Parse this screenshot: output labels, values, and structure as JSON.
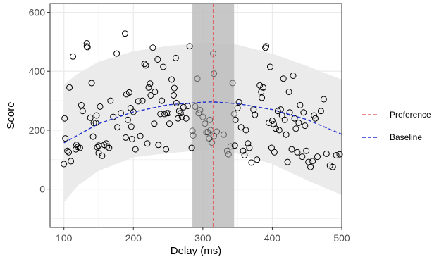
{
  "chart_data": {
    "type": "scatter",
    "xlabel": "Delay (ms)",
    "ylabel": "Score",
    "xlim": [
      80,
      500
    ],
    "ylim": [
      -130,
      630
    ],
    "x_ticks": [
      100,
      200,
      300,
      400,
      500
    ],
    "y_ticks": [
      0,
      200,
      400,
      600
    ],
    "grid": true,
    "legend_position": "right",
    "colors": {
      "panel_background": "#ffffff",
      "grid": "#ebebeb",
      "band": "#ebebeb",
      "window": "#bdbdbd",
      "points_stroke": "#000000",
      "preference": "#e06666",
      "baseline": "#1f2fcc"
    },
    "window": {
      "x_min": 285,
      "x_max": 345
    },
    "preference": {
      "name": "Preference",
      "x": 315
    },
    "baseline": {
      "name": "Baseline",
      "x": [
        100,
        150,
        200,
        250,
        300,
        315,
        350,
        400,
        450,
        500
      ],
      "y": [
        157,
        222,
        262,
        286,
        295,
        296,
        290,
        270,
        236,
        186
      ]
    },
    "band": {
      "x": [
        100,
        120,
        150,
        200,
        250,
        300,
        315,
        350,
        400,
        450,
        500
      ],
      "upper": [
        355,
        392,
        432,
        468,
        486,
        496,
        497,
        490,
        460,
        418,
        372
      ],
      "lower": [
        -45,
        12,
        62,
        108,
        122,
        132,
        134,
        120,
        85,
        30,
        -20
      ]
    },
    "points": [
      [
        100,
        85
      ],
      [
        101,
        240
      ],
      [
        102,
        172
      ],
      [
        105,
        130
      ],
      [
        107,
        125
      ],
      [
        108,
        345
      ],
      [
        110,
        95
      ],
      [
        113,
        450
      ],
      [
        117,
        135
      ],
      [
        118,
        150
      ],
      [
        120,
        143
      ],
      [
        123,
        140
      ],
      [
        125,
        285
      ],
      [
        127,
        265
      ],
      [
        133,
        485
      ],
      [
        133,
        495
      ],
      [
        134,
        482
      ],
      [
        138,
        242
      ],
      [
        140,
        360
      ],
      [
        142,
        178
      ],
      [
        143,
        225
      ],
      [
        146,
        225
      ],
      [
        147,
        250
      ],
      [
        148,
        142
      ],
      [
        150,
        122
      ],
      [
        150,
        148
      ],
      [
        152,
        280
      ],
      [
        155,
        113
      ],
      [
        158,
        150
      ],
      [
        161,
        155
      ],
      [
        162,
        145
      ],
      [
        165,
        140
      ],
      [
        167,
        300
      ],
      [
        171,
        245
      ],
      [
        176,
        460
      ],
      [
        177,
        210
      ],
      [
        182,
        258
      ],
      [
        188,
        528
      ],
      [
        189,
        175
      ],
      [
        190,
        322
      ],
      [
        192,
        235
      ],
      [
        194,
        328
      ],
      [
        196,
        275
      ],
      [
        197,
        212
      ],
      [
        198,
        170
      ],
      [
        200,
        262
      ],
      [
        203,
        135
      ],
      [
        207,
        298
      ],
      [
        210,
        180
      ],
      [
        213,
        300
      ],
      [
        216,
        425
      ],
      [
        218,
        420
      ],
      [
        220,
        155
      ],
      [
        222,
        345
      ],
      [
        224,
        358
      ],
      [
        225,
        318
      ],
      [
        228,
        480
      ],
      [
        230,
        222
      ],
      [
        231,
        330
      ],
      [
        235,
        440
      ],
      [
        236,
        150
      ],
      [
        239,
        255
      ],
      [
        241,
        300
      ],
      [
        243,
        415
      ],
      [
        245,
        255
      ],
      [
        247,
        135
      ],
      [
        248,
        258
      ],
      [
        250,
        258
      ],
      [
        252,
        222
      ],
      [
        255,
        372
      ],
      [
        258,
        318
      ],
      [
        259,
        343
      ],
      [
        261,
        445
      ],
      [
        262,
        292
      ],
      [
        264,
        240
      ],
      [
        266,
        265
      ],
      [
        268,
        258
      ],
      [
        270,
        245
      ],
      [
        272,
        278
      ],
      [
        276,
        240
      ],
      [
        278,
        282
      ],
      [
        281,
        485
      ],
      [
        284,
        140
      ],
      [
        285,
        198
      ],
      [
        286,
        182
      ],
      [
        289,
        280
      ],
      [
        292,
        375
      ],
      [
        294,
        258
      ],
      [
        296,
        268
      ],
      [
        300,
        245
      ],
      [
        303,
        222
      ],
      [
        305,
        193
      ],
      [
        307,
        193
      ],
      [
        309,
        172
      ],
      [
        310,
        235
      ],
      [
        311,
        200
      ],
      [
        313,
        158
      ],
      [
        315,
        460
      ],
      [
        316,
        392
      ],
      [
        316,
        180
      ],
      [
        320,
        195
      ],
      [
        330,
        185
      ],
      [
        335,
        130
      ],
      [
        337,
        118
      ],
      [
        340,
        145
      ],
      [
        343,
        360
      ],
      [
        345,
        255
      ],
      [
        346,
        148
      ],
      [
        347,
        235
      ],
      [
        350,
        275
      ],
      [
        352,
        295
      ],
      [
        355,
        210
      ],
      [
        358,
        130
      ],
      [
        360,
        115
      ],
      [
        362,
        200
      ],
      [
        365,
        155
      ],
      [
        367,
        140
      ],
      [
        370,
        90
      ],
      [
        373,
        270
      ],
      [
        375,
        252
      ],
      [
        378,
        100
      ],
      [
        382,
        352
      ],
      [
        384,
        330
      ],
      [
        385,
        310
      ],
      [
        387,
        345
      ],
      [
        390,
        480
      ],
      [
        391,
        485
      ],
      [
        395,
        225
      ],
      [
        397,
        415
      ],
      [
        399,
        140
      ],
      [
        400,
        232
      ],
      [
        402,
        220
      ],
      [
        403,
        125
      ],
      [
        405,
        205
      ],
      [
        408,
        265
      ],
      [
        410,
        200
      ],
      [
        412,
        270
      ],
      [
        414,
        250
      ],
      [
        416,
        375
      ],
      [
        418,
        235
      ],
      [
        420,
        185
      ],
      [
        422,
        92
      ],
      [
        424,
        330
      ],
      [
        425,
        260
      ],
      [
        428,
        135
      ],
      [
        430,
        385
      ],
      [
        432,
        240
      ],
      [
        434,
        205
      ],
      [
        436,
        125
      ],
      [
        438,
        225
      ],
      [
        440,
        285
      ],
      [
        443,
        110
      ],
      [
        445,
        260
      ],
      [
        447,
        215
      ],
      [
        449,
        130
      ],
      [
        452,
        92
      ],
      [
        455,
        75
      ],
      [
        458,
        95
      ],
      [
        460,
        250
      ],
      [
        462,
        240
      ],
      [
        465,
        110
      ],
      [
        470,
        265
      ],
      [
        474,
        305
      ],
      [
        478,
        120
      ],
      [
        483,
        80
      ],
      [
        487,
        75
      ],
      [
        492,
        115
      ],
      [
        497,
        118
      ]
    ]
  }
}
